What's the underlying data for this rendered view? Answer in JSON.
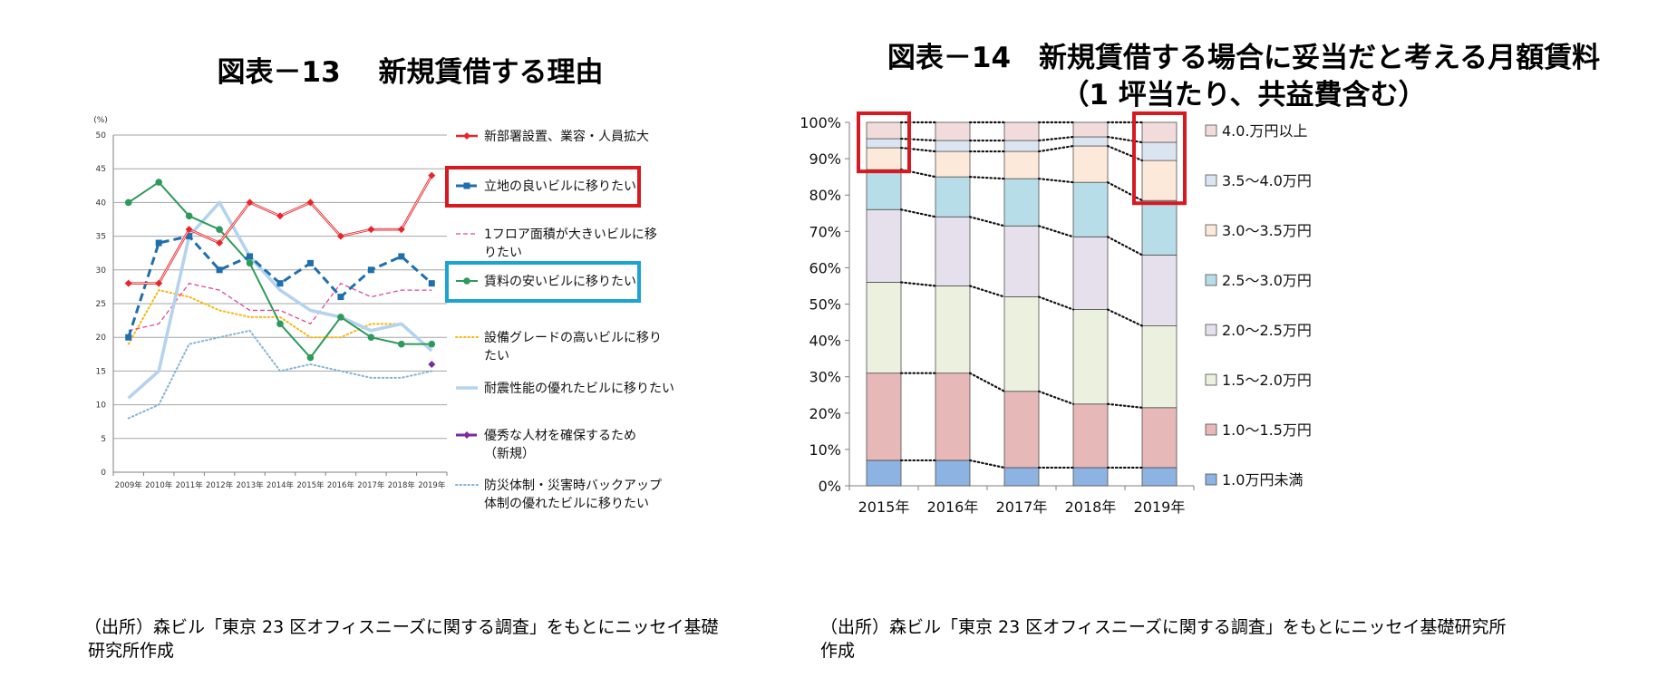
{
  "left": {
    "title": "図表－13　 新規賃借する理由",
    "source_line1": "（出所）森ビル「東京 23 区オフィスニーズに関する調査」をもとにニッセイ基礎",
    "source_line2": "研究所作成"
  },
  "right": {
    "title_line1": "図表－14　新規賃借する場合に妥当だと考える月額賃料",
    "title_line2": "（1 坪当たり、共益費含む）",
    "source_line1": "（出所）森ビル「東京 23 区オフィスニーズに関する調査」をもとにニッセイ基礎研究所",
    "source_line2": "作成"
  },
  "chart_data": [
    {
      "type": "line",
      "title": "図表－13　 新規賃借する理由",
      "ylabel": "(%)",
      "ylim": [
        0,
        50
      ],
      "yticks": [
        0,
        5,
        10,
        15,
        20,
        25,
        30,
        35,
        40,
        45,
        50
      ],
      "categories": [
        "2009年",
        "2010年",
        "2011年",
        "2012年",
        "2013年",
        "2014年",
        "2015年",
        "2016年",
        "2017年",
        "2018年",
        "2019年"
      ],
      "grid": true,
      "legend_position": "right",
      "series": [
        {
          "name": "新部署設置、業容・人員拡大",
          "color": "#e8262a",
          "style": "double-solid",
          "marker": "diamond",
          "values": [
            28,
            28,
            36,
            34,
            40,
            38,
            40,
            35,
            36,
            36,
            44
          ],
          "highlight": false
        },
        {
          "name": "立地の良いビルに移りたい",
          "color": "#1f6fad",
          "style": "dashed",
          "marker": "square",
          "values": [
            20,
            34,
            35,
            30,
            32,
            28,
            31,
            26,
            30,
            32,
            28
          ],
          "highlight": true,
          "highlight_color": "#d71920"
        },
        {
          "name": "1フロア面積が大きいビルに移りたい",
          "color": "#e0489a",
          "style": "thin-dashed",
          "marker": "none",
          "values": [
            21,
            22,
            28,
            27,
            24,
            24,
            22,
            28,
            26,
            27,
            27
          ],
          "highlight": false
        },
        {
          "name": "賃料の安いビルに移りたい",
          "color": "#2d9a5b",
          "style": "solid",
          "marker": "circle",
          "values": [
            40,
            43,
            38,
            36,
            31,
            22,
            17,
            23,
            20,
            19,
            19
          ],
          "highlight": true,
          "highlight_color": "#1ba3d6"
        },
        {
          "name": "設備グレードの高いビルに移りたい",
          "color": "#f5b814",
          "style": "dotted",
          "marker": "none",
          "values": [
            19,
            27,
            26,
            24,
            23,
            23,
            20,
            20,
            22,
            22,
            null
          ],
          "highlight": false
        },
        {
          "name": "耐震性能の優れたビルに移りたい",
          "color": "#b5d3ee",
          "style": "thick-solid",
          "marker": "none",
          "values": [
            11,
            15,
            35,
            40,
            32,
            27,
            24,
            23,
            21,
            22,
            18
          ],
          "highlight": false
        },
        {
          "name": "優秀な人材を確保するため（新規）",
          "color": "#7b2a9e",
          "style": "dashed",
          "marker": "diamond",
          "values": [
            null,
            null,
            null,
            null,
            null,
            null,
            null,
            null,
            null,
            null,
            16
          ],
          "highlight": false
        },
        {
          "name": "防災体制・災害時バックアップ体制の優れたビルに移りたい",
          "color": "#86b4d4",
          "style": "dotted",
          "marker": "none",
          "values": [
            8,
            10,
            19,
            20,
            21,
            15,
            16,
            15,
            14,
            14,
            15
          ],
          "highlight": false
        }
      ]
    },
    {
      "type": "bar",
      "stacked": "percent",
      "title": "図表－14　新規賃借する場合に妥当だと考える月額賃料（1 坪当たり、共益費含む）",
      "ylim": [
        0,
        100
      ],
      "yticks": [
        "0%",
        "10%",
        "20%",
        "30%",
        "40%",
        "50%",
        "60%",
        "70%",
        "80%",
        "90%",
        "100%"
      ],
      "categories": [
        "2015年",
        "2016年",
        "2017年",
        "2018年",
        "2019年"
      ],
      "legend_position": "right",
      "highlight_categories": [
        "2015年",
        "2019年"
      ],
      "highlight_color": "#d71920",
      "series": [
        {
          "name": "1.0万円未満",
          "color": "#8db3e2",
          "values": [
            7,
            7,
            5,
            5,
            5
          ]
        },
        {
          "name": "1.0～1.5万円",
          "color": "#e6b9b8",
          "values": [
            24,
            24,
            21,
            17.5,
            16.5
          ]
        },
        {
          "name": "1.5～2.0万円",
          "color": "#ebf1de",
          "values": [
            25,
            24,
            26,
            26,
            22.5
          ]
        },
        {
          "name": "2.0～2.5万円",
          "color": "#e6e0ec",
          "values": [
            20,
            19,
            19.5,
            20,
            19.5
          ]
        },
        {
          "name": "2.5～3.0万円",
          "color": "#b7dde8",
          "values": [
            11,
            11,
            13,
            15,
            15
          ]
        },
        {
          "name": "3.0～3.5万円",
          "color": "#fde9d9",
          "values": [
            6,
            7,
            7.5,
            10,
            11
          ]
        },
        {
          "name": "3.5～4.0万円",
          "color": "#dbe5f1",
          "values": [
            2.5,
            3,
            3,
            2.5,
            5
          ]
        },
        {
          "name": "4.0.万円以上",
          "color": "#f2dcdb",
          "values": [
            4.5,
            5,
            5,
            4,
            5.5
          ]
        }
      ]
    }
  ]
}
